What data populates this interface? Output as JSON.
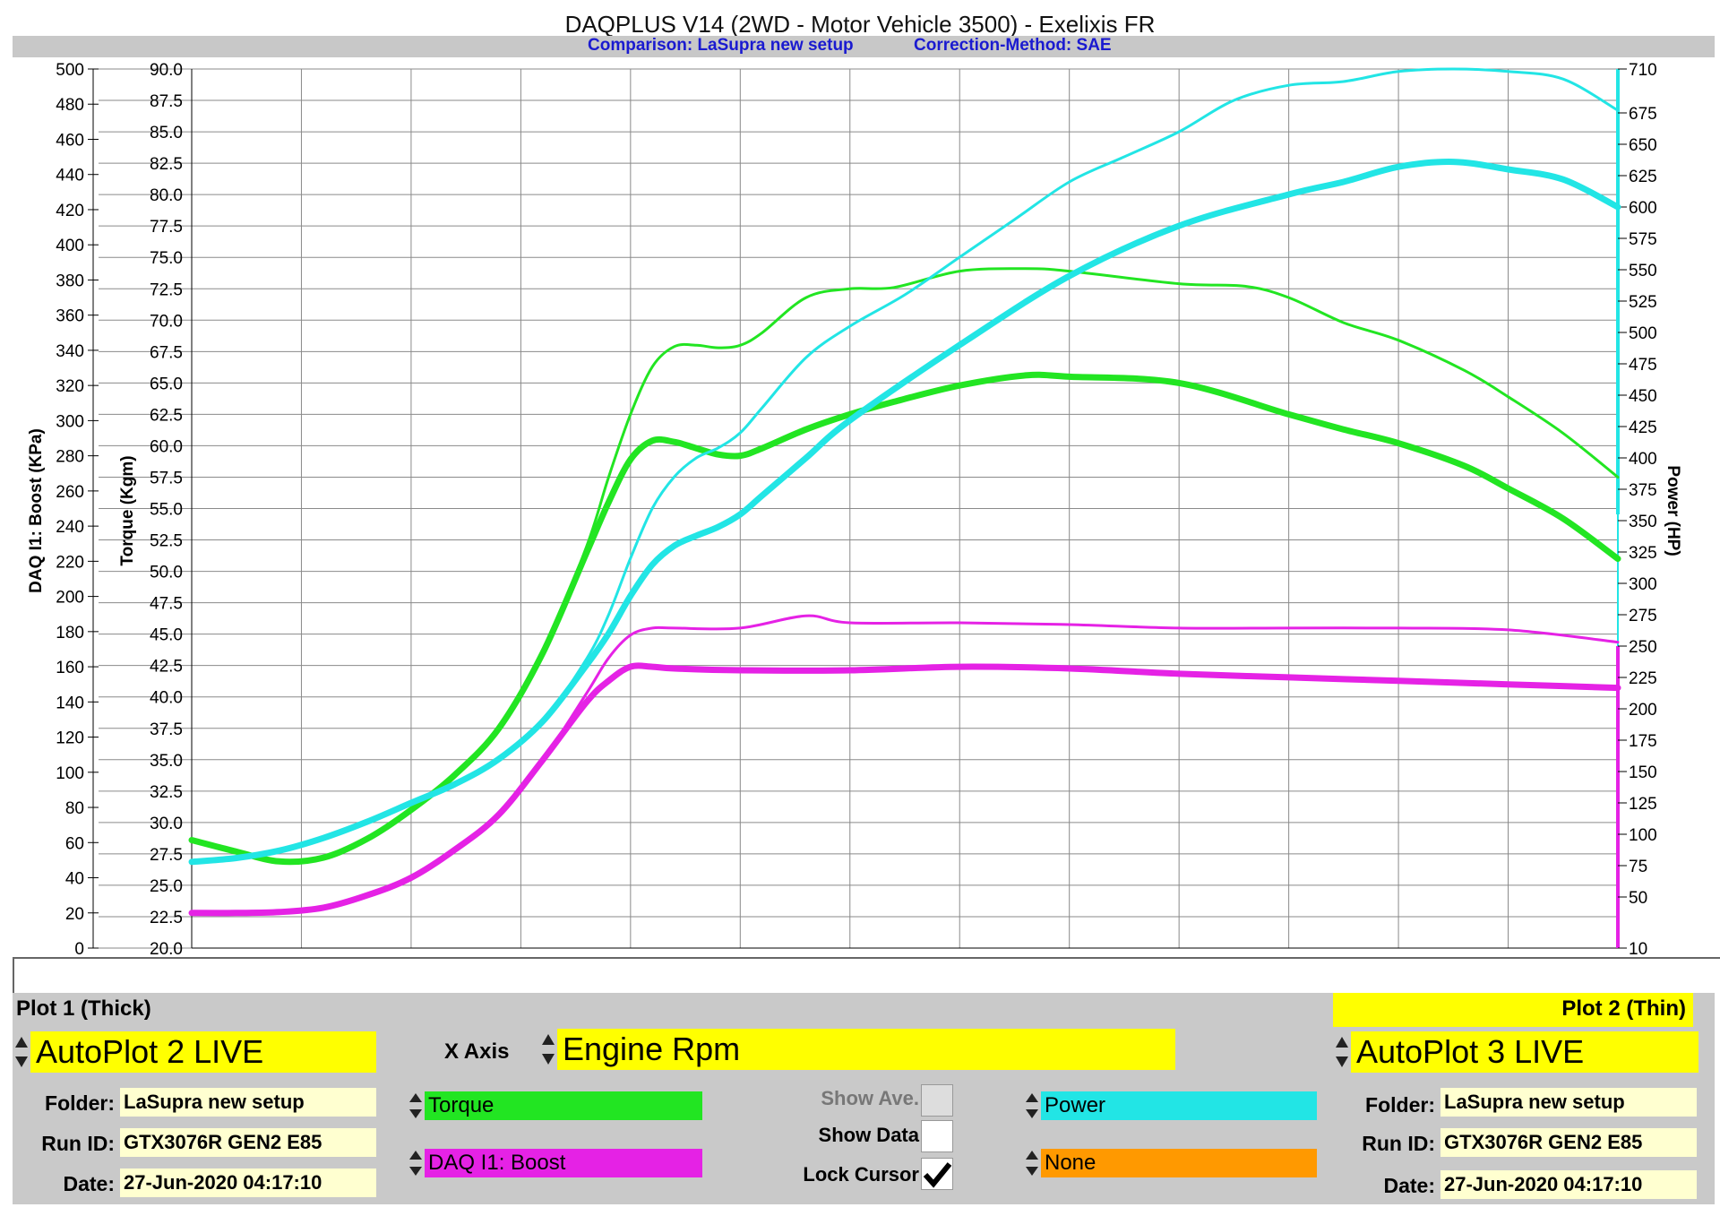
{
  "header": {
    "title": "DAQPLUS V14 (2WD - Motor Vehicle 3500) - Exelixis FR",
    "comparison": "Comparison: LaSupra new setup",
    "correction": "Correction-Method: SAE"
  },
  "colors": {
    "torque": "#22e522",
    "power": "#22e5e5",
    "boost": "#e522e5",
    "none": "#ff9900",
    "highlight": "#ffff00",
    "field": "#ffffd0",
    "panel": "#c9c9c9",
    "subtitle": "#1a1ad0"
  },
  "chart_data": {
    "type": "line",
    "xlabel": "",
    "x_ticks": [
      "2000",
      "2500",
      "3000",
      "3500",
      "4000",
      "4500",
      "5000",
      "5500",
      "6000",
      "6500",
      "7000",
      "7500",
      "8000",
      "8500"
    ],
    "xlim": [
      2000,
      8500
    ],
    "y_axes": {
      "boost": {
        "label": "DAQ I1: Boost (KPa)",
        "range": [
          0,
          500
        ],
        "ticks": [
          "0",
          "20",
          "40",
          "60",
          "80",
          "100",
          "120",
          "140",
          "160",
          "180",
          "200",
          "220",
          "240",
          "260",
          "280",
          "300",
          "320",
          "340",
          "360",
          "380",
          "400",
          "420",
          "440",
          "460",
          "480",
          "500"
        ]
      },
      "torque": {
        "label": "Torque (Kgm)",
        "range": [
          20,
          90
        ],
        "ticks": [
          "20.0",
          "22.5",
          "25.0",
          "27.5",
          "30.0",
          "32.5",
          "35.0",
          "37.5",
          "40.0",
          "42.5",
          "45.0",
          "47.5",
          "50.0",
          "52.5",
          "55.0",
          "57.5",
          "60.0",
          "62.5",
          "65.0",
          "67.5",
          "70.0",
          "72.5",
          "75.0",
          "77.5",
          "80.0",
          "82.5",
          "85.0",
          "87.5",
          "90.0"
        ]
      },
      "power": {
        "label": "Power (HP)",
        "ticks": [
          {
            "v": 10,
            "label": "10"
          },
          {
            "v": 50,
            "label": "50"
          },
          {
            "v": 75,
            "label": "75"
          },
          {
            "v": 100,
            "label": "100"
          },
          {
            "v": 125,
            "label": "125"
          },
          {
            "v": 150,
            "label": "150"
          },
          {
            "v": 175,
            "label": "175"
          },
          {
            "v": 200,
            "label": "200"
          },
          {
            "v": 225,
            "label": "225"
          },
          {
            "v": 250,
            "label": "250"
          },
          {
            "v": 275,
            "label": "275"
          },
          {
            "v": 300,
            "label": "300"
          },
          {
            "v": 325,
            "label": "325"
          },
          {
            "v": 350,
            "label": "350"
          },
          {
            "v": 375,
            "label": "375"
          },
          {
            "v": 400,
            "label": "400"
          },
          {
            "v": 425,
            "label": "425"
          },
          {
            "v": 450,
            "label": "450"
          },
          {
            "v": 475,
            "label": "475"
          },
          {
            "v": 500,
            "label": "500"
          },
          {
            "v": 525,
            "label": "525"
          },
          {
            "v": 550,
            "label": "550"
          },
          {
            "v": 575,
            "label": "575"
          },
          {
            "v": 600,
            "label": "600"
          },
          {
            "v": 625,
            "label": "625"
          },
          {
            "v": 650,
            "label": "650"
          },
          {
            "v": 675,
            "label": "675"
          },
          {
            "v": 710,
            "label": "710"
          }
        ]
      }
    },
    "grid": true,
    "series": [
      {
        "name": "Torque",
        "plot": "Plot 1 (Thick)",
        "axis": "torque",
        "color": "#22e522",
        "width": 7,
        "x": [
          2000,
          2200,
          2400,
          2600,
          2800,
          3000,
          3200,
          3400,
          3600,
          3800,
          3900,
          4000,
          4100,
          4200,
          4300,
          4400,
          4500,
          4600,
          4800,
          5000,
          5200,
          5500,
          5800,
          6000,
          6500,
          7000,
          7250,
          7500,
          7800,
          8000,
          8250,
          8500
        ],
        "y": [
          28.6,
          27.7,
          26.9,
          27.2,
          28.7,
          31.0,
          33.8,
          37.5,
          43.5,
          51.5,
          55.5,
          58.9,
          60.4,
          60.3,
          59.8,
          59.3,
          59.2,
          59.8,
          61.3,
          62.5,
          63.5,
          64.8,
          65.6,
          65.5,
          65.0,
          62.5,
          61.3,
          60.2,
          58.4,
          56.6,
          54.2,
          51.0
        ]
      },
      {
        "name": "Torque",
        "plot": "Plot 2 (Thin)",
        "axis": "torque",
        "color": "#22e522",
        "width": 3,
        "x": [
          2000,
          2200,
          2400,
          2600,
          2800,
          3000,
          3200,
          3400,
          3600,
          3800,
          3900,
          4000,
          4100,
          4200,
          4300,
          4400,
          4500,
          4600,
          4800,
          5000,
          5200,
          5500,
          5800,
          6000,
          6500,
          6800,
          7000,
          7250,
          7500,
          7800,
          8000,
          8250,
          8500
        ],
        "y": [
          28.6,
          27.7,
          26.9,
          27.2,
          28.7,
          31.0,
          33.8,
          37.5,
          43.5,
          52.0,
          57.5,
          62.5,
          66.3,
          67.9,
          68.0,
          67.8,
          68.0,
          69.0,
          71.8,
          72.5,
          72.6,
          73.9,
          74.1,
          73.9,
          72.9,
          72.7,
          71.8,
          69.8,
          68.4,
          66.0,
          63.9,
          61.0,
          57.5
        ]
      },
      {
        "name": "Power",
        "plot": "Plot 1 (Thick)",
        "axis": "power",
        "color": "#22e5e5",
        "width": 7,
        "x": [
          2000,
          2200,
          2400,
          2600,
          2800,
          3000,
          3200,
          3400,
          3600,
          3800,
          3900,
          4000,
          4100,
          4200,
          4300,
          4400,
          4500,
          4600,
          4800,
          5000,
          5500,
          6000,
          6500,
          7000,
          7250,
          7500,
          7750,
          8000,
          8250,
          8500
        ],
        "y": [
          78,
          81,
          87,
          97,
          110,
          125,
          140,
          160,
          190,
          235,
          260,
          290,
          315,
          330,
          338,
          345,
          355,
          370,
          400,
          430,
          490,
          545,
          585,
          610,
          620,
          632,
          636,
          630,
          622,
          600
        ]
      },
      {
        "name": "Power",
        "plot": "Plot 2 (Thin)",
        "axis": "power",
        "color": "#22e5e5",
        "width": 3,
        "x": [
          2000,
          2200,
          2400,
          2600,
          2800,
          3000,
          3200,
          3400,
          3600,
          3800,
          3900,
          4000,
          4100,
          4200,
          4300,
          4400,
          4500,
          4600,
          4800,
          5000,
          5250,
          5500,
          5750,
          6000,
          6250,
          6500,
          6750,
          7000,
          7250,
          7500,
          7750,
          8000,
          8250,
          8500
        ],
        "y": [
          78,
          81,
          87,
          97,
          110,
          125,
          140,
          160,
          190,
          240,
          275,
          320,
          360,
          385,
          400,
          408,
          420,
          440,
          480,
          505,
          530,
          560,
          590,
          620,
          640,
          660,
          685,
          697,
          700,
          708,
          710,
          708,
          702,
          677
        ]
      },
      {
        "name": "DAQ I1: Boost",
        "plot": "Plot 1 (Thick)",
        "axis": "boost",
        "color": "#e522e5",
        "width": 7,
        "x": [
          2000,
          2200,
          2400,
          2600,
          2800,
          3000,
          3200,
          3400,
          3600,
          3800,
          3900,
          4000,
          4100,
          4200,
          4500,
          5000,
          5500,
          6000,
          6500,
          7000,
          7500,
          8000,
          8500
        ],
        "y": [
          20,
          20,
          20.5,
          23,
          30,
          40,
          56,
          76,
          107,
          140,
          152,
          160,
          160,
          159,
          158,
          158,
          160,
          159,
          156,
          154,
          152,
          150,
          148
        ]
      },
      {
        "name": "DAQ I1: Boost",
        "plot": "Plot 2 (Thin)",
        "axis": "boost",
        "color": "#e522e5",
        "width": 3,
        "x": [
          2000,
          2200,
          2400,
          2600,
          2800,
          3000,
          3200,
          3400,
          3600,
          3800,
          3900,
          4000,
          4100,
          4200,
          4500,
          4800,
          5000,
          5500,
          6000,
          6500,
          7000,
          7500,
          8000,
          8500
        ],
        "y": [
          20,
          20,
          20.5,
          23,
          30,
          40,
          56,
          76,
          107,
          145,
          165,
          178,
          182,
          182,
          182,
          189,
          185,
          185,
          184,
          182,
          182,
          182,
          181,
          174
        ]
      }
    ]
  },
  "panel": {
    "plot1_title": "Plot 1 (Thick)",
    "plot2_title": "Plot 2 (Thin)",
    "plot1_source": "AutoPlot 2 LIVE",
    "plot2_source": "AutoPlot 3 LIVE",
    "x_axis_label": "X Axis",
    "x_axis_value": "Engine Rpm",
    "folder_label": "Folder:",
    "run_label": "Run ID:",
    "date_label": "Date:",
    "plot1_folder": "LaSupra new setup",
    "plot1_run": "GTX3076R GEN2 E85",
    "plot1_date": "27-Jun-2020 04:17:10",
    "plot2_folder": "LaSupra new setup",
    "plot2_run": "GTX3076R GEN2 E85",
    "plot2_date": "27-Jun-2020 04:17:10",
    "channel_torque": "Torque",
    "channel_boost": "DAQ I1: Boost",
    "channel_power": "Power",
    "channel_none": "None",
    "show_ave_label": "Show Ave.",
    "show_data_label": "Show Data",
    "lock_cursor_label": "Lock Cursor",
    "show_ave_checked": false,
    "show_data_checked": false,
    "lock_cursor_checked": true
  }
}
